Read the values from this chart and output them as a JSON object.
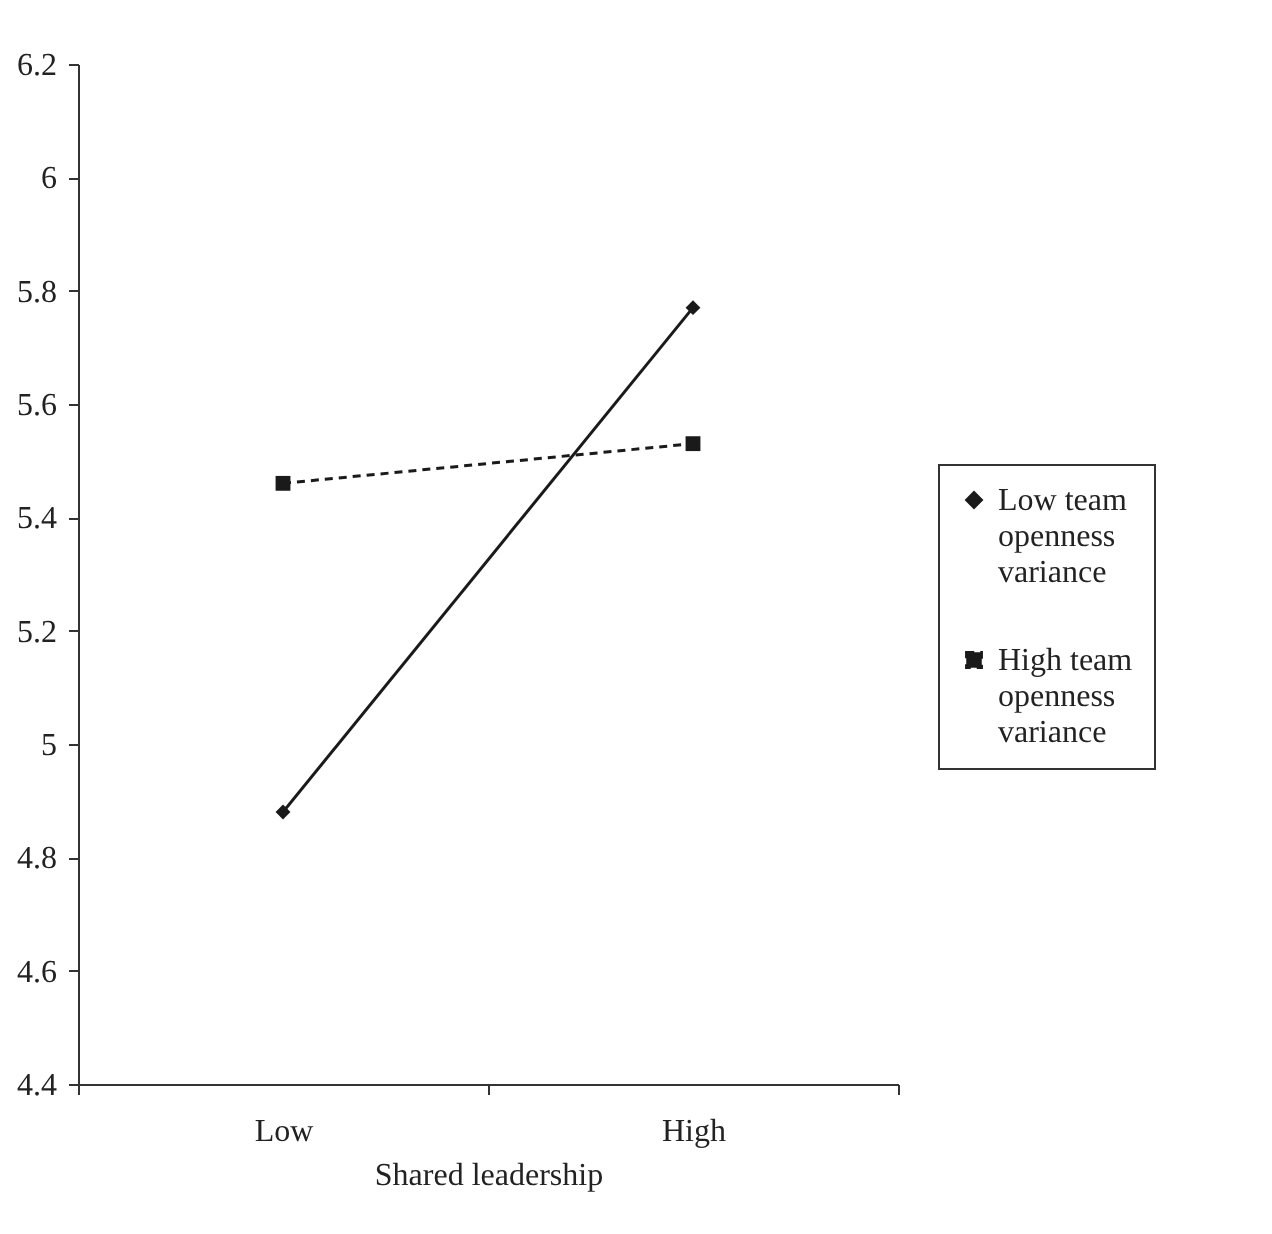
{
  "chart_data": {
    "type": "line",
    "xlabel": "Shared leadership",
    "categories": [
      "Low",
      "High"
    ],
    "series": [
      {
        "name": "Low team openness variance",
        "color": "#1a1a1a",
        "values": [
          4.88,
          5.77
        ],
        "marker": "diamond",
        "line_style": "solid"
      },
      {
        "name": "High team openness variance",
        "color": "#1a1a1a",
        "values": [
          5.46,
          5.53
        ],
        "marker": "square",
        "line_style": "dashed"
      }
    ],
    "ylim": [
      4.4,
      6.2
    ],
    "yticks": [
      4.4,
      4.6,
      4.8,
      5,
      5.2,
      5.4,
      5.6,
      5.8,
      6,
      6.2
    ],
    "grid": false,
    "legend": "right"
  }
}
